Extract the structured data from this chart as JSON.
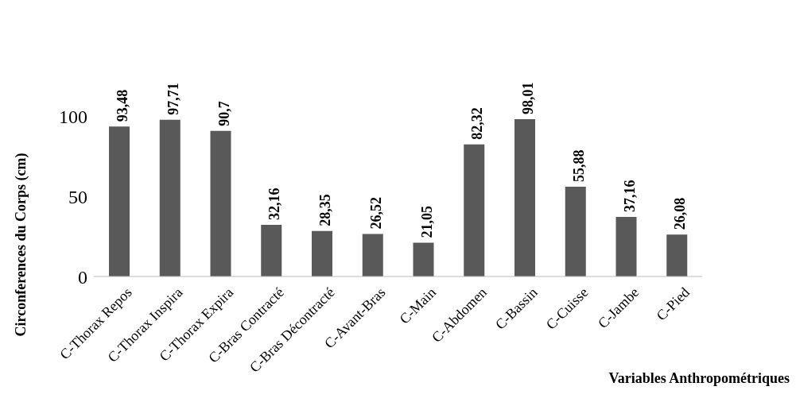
{
  "chart_data": {
    "type": "bar",
    "xlabel": "Variables Anthropométriques",
    "ylabel": "Circonferences du Corps (cm)",
    "categories": [
      "C-Thorax Repos",
      "C-Thorax Inspira",
      "C-Thorax Expira",
      "C-Bras Contracté",
      "C-Bras Décontracté",
      "C-Avant-Bras",
      "C-Main",
      "C-Abdomen",
      "C-Bassin",
      "C-Cuisse",
      "C-Jambe",
      "C-Pied"
    ],
    "values": [
      93.48,
      97.71,
      90.7,
      32.16,
      28.35,
      26.52,
      21.05,
      82.32,
      98.01,
      55.88,
      37.16,
      26.08
    ],
    "value_labels": [
      "93,48",
      "97,71",
      "90,7",
      "32,16",
      "28,35",
      "26,52",
      "21,05",
      "82,32",
      "98,01",
      "55,88",
      "37,16",
      "26,08"
    ],
    "color": "#595959",
    "ylim": [
      0,
      100
    ],
    "yticks": [
      0,
      50,
      100
    ],
    "grid": false
  }
}
